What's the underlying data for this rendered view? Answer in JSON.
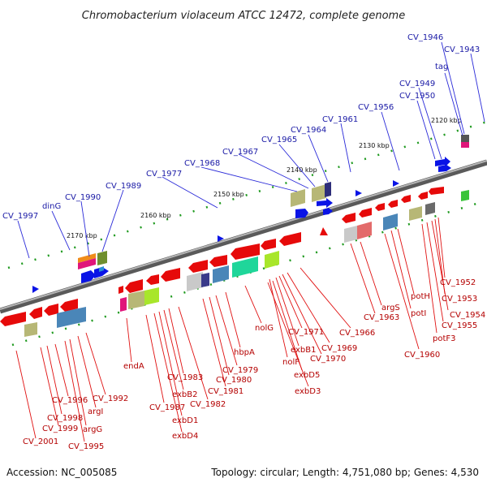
{
  "title": "Chromobacterium violaceum ATCC 12472, complete genome",
  "footer": {
    "accession": "Accession: NC_005085",
    "summary": "Topology: circular; Length: 4,751,080 bp; Genes: 4,530"
  },
  "scale_ticks": [
    "2120 kbp",
    "2130 kbp",
    "2140 kbp",
    "2150 kbp",
    "2160 kbp",
    "2170 kbp"
  ],
  "forward_labels": [
    "CV_1946",
    "CV_1943",
    "tag",
    "CV_1949",
    "CV_1950",
    "CV_1956",
    "CV_1961",
    "CV_1964",
    "CV_1965",
    "CV_1967",
    "CV_1968",
    "CV_1977",
    "CV_1989",
    "CV_1990",
    "dinG",
    "CV_1997"
  ],
  "reverse_labels": [
    "CV_1952",
    "CV_1953",
    "CV_1954",
    "CV_1955",
    "potF3",
    "potH",
    "potI",
    "argS",
    "CV_1963",
    "CV_1960",
    "CV_1966",
    "CV_1969",
    "CV_1970",
    "CV_1971",
    "exbB1",
    "nolF",
    "exbD5",
    "exbD3",
    "nolG",
    "hbpA",
    "CV_1979",
    "CV_1980",
    "CV_1981",
    "CV_1982",
    "CV_1983",
    "exbB2",
    "exbD1",
    "exbD4",
    "CV_1987",
    "endA",
    "CV_1992",
    "argI",
    "argG",
    "CV_1995",
    "CV_1996",
    "CV_1998",
    "CV_1999",
    "CV_2001"
  ],
  "colors": {
    "forward_label": "#1a1aa6",
    "reverse_label": "#b40000",
    "forward_gene": "#0a14e6",
    "reverse_gene": "#e60a0a",
    "backbone": "#8c8c8c"
  }
}
